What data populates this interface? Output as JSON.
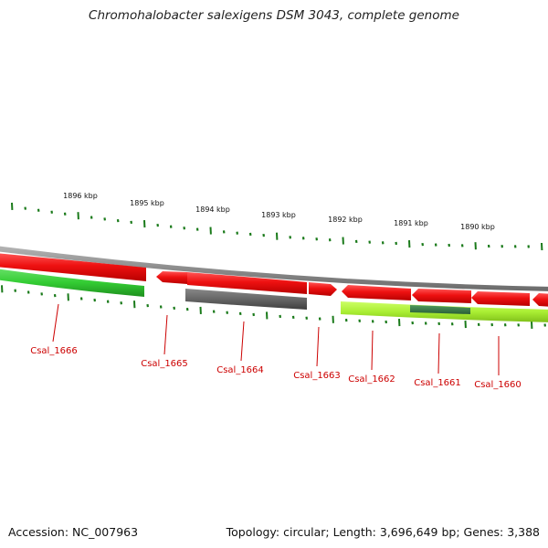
{
  "title": "Chromohalobacter salexigens DSM 3043, complete genome",
  "footer": {
    "accession": "Accession: NC_007963",
    "summary": "Topology: circular; Length: 3,696,649 bp; Genes: 3,388"
  },
  "ruler": {
    "unit": "kbp",
    "labels": [
      "1896 kbp",
      "1895 kbp",
      "1894 kbp",
      "1893 kbp",
      "1892 kbp",
      "1891 kbp",
      "1890 kbp"
    ]
  },
  "colors": {
    "forward_gene": "#ee1111",
    "reverse_gene_green": "#33cc33",
    "reverse_gene_gray": "#666666",
    "reverse_gene_lime": "#aaee33",
    "reverse_gene_darkgreen": "#337744",
    "backbone": "#8c8c8c",
    "tick": "#1a7a1a",
    "gene_label": "#cc0000"
  },
  "genes": [
    {
      "name": "Csal_1666",
      "strand": "reverse",
      "color": "green"
    },
    {
      "name": "Csal_1665",
      "strand": "forward",
      "color": "red"
    },
    {
      "name": "Csal_1664",
      "strand": "reverse",
      "color": "gray"
    },
    {
      "name": "Csal_1663",
      "strand": "forward",
      "color": "red"
    },
    {
      "name": "Csal_1662",
      "strand": "forward",
      "color": "red"
    },
    {
      "name": "Csal_1661",
      "strand": "forward",
      "color": "red"
    },
    {
      "name": "Csal_1660",
      "strand": "reverse",
      "color": "lime"
    }
  ]
}
